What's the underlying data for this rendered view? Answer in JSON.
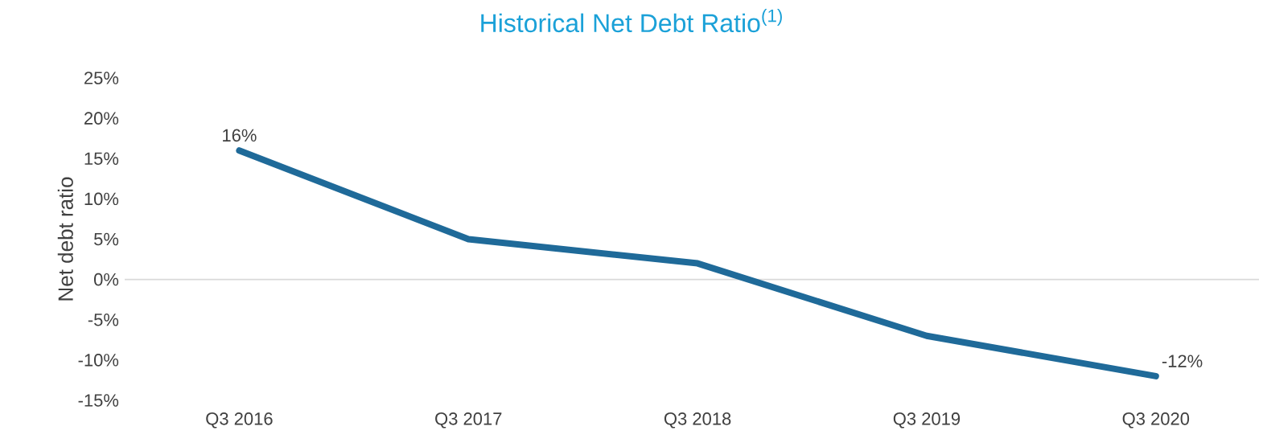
{
  "chart_data": {
    "type": "line",
    "title": "Historical Net Debt Ratio$^{(1)}$",
    "ylabel": "Net debt ratio",
    "categories": [
      "Q3 2016",
      "Q3 2017",
      "Q3 2018",
      "Q3 2019",
      "Q3 2020"
    ],
    "series": [
      {
        "color": "#1f6a99",
        "values": [
          16,
          5,
          2,
          -7,
          -12
        ],
        "value_labels": [
          "16%",
          null,
          null,
          null,
          "-12%"
        ]
      }
    ],
    "ylim": [
      -15,
      25
    ],
    "yticks": [
      {
        "value": -15,
        "label": "-15%"
      },
      {
        "value": -10,
        "label": "-10%"
      },
      {
        "value": -5,
        "label": "-5%"
      },
      {
        "value": 0,
        "label": "0%"
      },
      {
        "value": 5,
        "label": "5%"
      },
      {
        "value": 10,
        "label": "10%"
      },
      {
        "value": 15,
        "label": "15%"
      },
      {
        "value": 20,
        "label": "20%"
      },
      {
        "value": 25,
        "label": "25%"
      }
    ],
    "ref_lines": [
      {
        "axis": "y",
        "value": 0,
        "color": "#d9d9d9"
      }
    ],
    "marker": "none",
    "line_style": "solid"
  }
}
